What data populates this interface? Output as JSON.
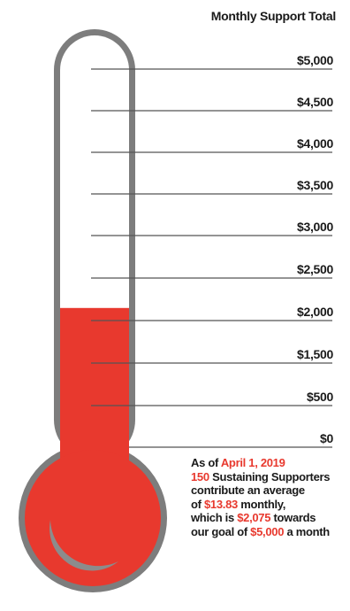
{
  "colors": {
    "fill": "#e8392e",
    "tube_outline": "#7d7d7d",
    "tick_line": "#555555",
    "text": "#1a1a1a",
    "highlight": "#e8392e"
  },
  "icons": {
    "bulb_crescent": "crescent-highlight-icon"
  },
  "chart_data": {
    "type": "thermometer",
    "title": "Monthly Support Total",
    "current_value": 2075,
    "goal": 5000,
    "ticks": [
      {
        "label": "$5,000",
        "value": 5000
      },
      {
        "label": "$4,500",
        "value": 4500
      },
      {
        "label": "$4,000",
        "value": 4000
      },
      {
        "label": "$3,500",
        "value": 3500
      },
      {
        "label": "$3,000",
        "value": 3000
      },
      {
        "label": "$2,500",
        "value": 2500
      },
      {
        "label": "$2,000",
        "value": 2000
      },
      {
        "label": "$1,500",
        "value": 1500
      },
      {
        "label": "$500",
        "value": 500
      },
      {
        "label": "$0",
        "value": 0
      }
    ]
  },
  "caption": {
    "line1_pre": "As of ",
    "line1_date": "April 1, 2019",
    "line2_count": "150",
    "line2_post": " Sustaining Supporters",
    "line3": "contribute an average",
    "line4_pre": "of ",
    "line4_avg": "$13.83",
    "line4_post": " monthly,",
    "line5_pre": "which is ",
    "line5_total": "$2,075",
    "line5_post": " towards",
    "line6_pre": "our goal of ",
    "line6_goal": "$5,000",
    "line6_post": " a month"
  }
}
